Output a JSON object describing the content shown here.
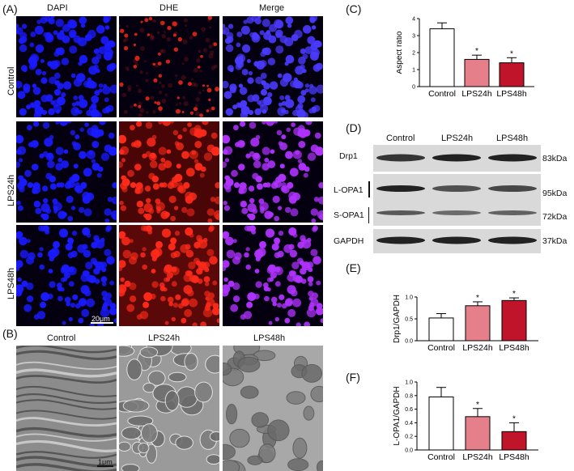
{
  "panel_labels": {
    "A": "(A)",
    "B": "(B)",
    "C": "(C)",
    "D": "(D)",
    "E": "(E)",
    "F": "(F)"
  },
  "fluorescence": {
    "columns": [
      "DAPI",
      "DHE",
      "Merge"
    ],
    "rows": [
      "Control",
      "LPS24h",
      "LPS48h"
    ],
    "scale_bar": "20μm",
    "colors": {
      "dapi": "#1a1aff",
      "dhe": "#ff2a1a",
      "merge": "#b032ff",
      "background": "#050010"
    }
  },
  "em": {
    "titles": [
      "Control",
      "LPS24h",
      "LPS48h"
    ],
    "scale_bar": "1μm"
  },
  "western_blot": {
    "lanes": [
      "Control",
      "LPS24h",
      "LPS48h"
    ],
    "rows": [
      "Drp1",
      "L-OPA1",
      "S-OPA1",
      "GAPDH"
    ],
    "markers": [
      "83kDa",
      "95kDa",
      "72kDa",
      "37kDa"
    ]
  },
  "chart_data": [
    {
      "id": "C",
      "type": "bar",
      "categories": [
        "Control",
        "LPS24h",
        "LPS48h"
      ],
      "values": [
        3.4,
        1.6,
        1.4
      ],
      "errors": [
        0.35,
        0.25,
        0.3
      ],
      "significance": [
        "",
        "*",
        "*"
      ],
      "ylabel": "Aspect ratio",
      "ylim": [
        0,
        4
      ],
      "yticks": [
        "0",
        "1",
        "2",
        "3",
        "4"
      ],
      "colors": [
        "#ffffff",
        "#e57f89",
        "#c0142a"
      ]
    },
    {
      "id": "E",
      "type": "bar",
      "categories": [
        "Control",
        "LPS24h",
        "LPS48h"
      ],
      "values": [
        0.52,
        0.8,
        0.92
      ],
      "errors": [
        0.1,
        0.09,
        0.06
      ],
      "significance": [
        "",
        "*",
        "*"
      ],
      "ylabel": "Drp1/GAPDH",
      "ylim": [
        0,
        1.0
      ],
      "yticks": [
        "0.0",
        "0.5",
        "1.0"
      ],
      "colors": [
        "#ffffff",
        "#e57f89",
        "#c0142a"
      ]
    },
    {
      "id": "F",
      "type": "bar",
      "categories": [
        "Control",
        "LPS24h",
        "LPS48h"
      ],
      "values": [
        0.78,
        0.49,
        0.27
      ],
      "errors": [
        0.14,
        0.12,
        0.13
      ],
      "significance": [
        "",
        "*",
        "*"
      ],
      "ylabel": "L-OPA1/GAPDH",
      "ylim": [
        0,
        1.0
      ],
      "yticks": [
        "0.0",
        "0.2",
        "0.4",
        "0.6",
        "0.8",
        "1.0"
      ],
      "colors": [
        "#ffffff",
        "#e57f89",
        "#c0142a"
      ]
    }
  ]
}
